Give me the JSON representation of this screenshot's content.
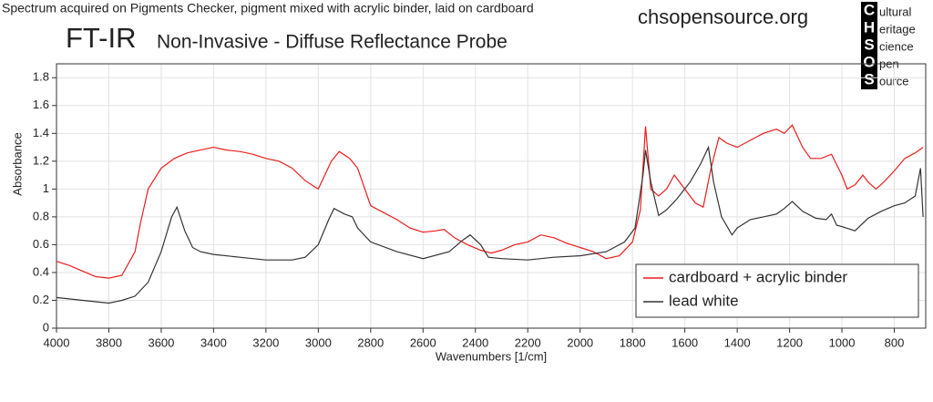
{
  "chart_data": {
    "type": "line",
    "caption": "Spectrum acquired on Pigments Checker, pigment mixed with acrylic binder, laid on cardboard",
    "title": "FT-IR",
    "subtitle": "Non-Invasive - Diffuse Reflectance Probe",
    "source": "chsopensource.org",
    "xlabel": "Wavenumbers [1/cm]",
    "ylabel": "Absorbance",
    "xlim": [
      4000,
      680
    ],
    "ylim": [
      0,
      1.9
    ],
    "xticks": [
      4000,
      3800,
      3600,
      3400,
      3200,
      3000,
      2800,
      2600,
      2400,
      2200,
      2000,
      1800,
      1600,
      1400,
      1200,
      1000,
      800
    ],
    "yticks": [
      0,
      0.2,
      0.4,
      0.6,
      0.8,
      1,
      1.2,
      1.4,
      1.6,
      1.8
    ],
    "grid": true,
    "legend": "lower right",
    "series": [
      {
        "name": "cardboard + acrylic binder",
        "color": "#ee1c1c",
        "x": [
          4000,
          3950,
          3900,
          3850,
          3800,
          3750,
          3700,
          3680,
          3650,
          3600,
          3550,
          3500,
          3450,
          3400,
          3350,
          3300,
          3250,
          3200,
          3150,
          3100,
          3050,
          3000,
          2950,
          2920,
          2880,
          2850,
          2800,
          2750,
          2700,
          2650,
          2600,
          2550,
          2520,
          2480,
          2430,
          2380,
          2340,
          2300,
          2250,
          2200,
          2150,
          2100,
          2050,
          2000,
          1950,
          1900,
          1850,
          1800,
          1770,
          1750,
          1730,
          1700,
          1670,
          1640,
          1600,
          1560,
          1530,
          1500,
          1470,
          1440,
          1400,
          1350,
          1300,
          1250,
          1220,
          1190,
          1150,
          1120,
          1080,
          1040,
          1000,
          980,
          950,
          920,
          900,
          870,
          840,
          800,
          760,
          720,
          690
        ],
        "values": [
          0.48,
          0.45,
          0.41,
          0.37,
          0.36,
          0.38,
          0.55,
          0.75,
          1.0,
          1.15,
          1.22,
          1.26,
          1.28,
          1.3,
          1.28,
          1.27,
          1.25,
          1.22,
          1.2,
          1.15,
          1.06,
          1.0,
          1.2,
          1.27,
          1.22,
          1.15,
          0.88,
          0.83,
          0.78,
          0.72,
          0.69,
          0.7,
          0.71,
          0.65,
          0.6,
          0.56,
          0.54,
          0.56,
          0.6,
          0.62,
          0.67,
          0.65,
          0.61,
          0.58,
          0.55,
          0.5,
          0.52,
          0.62,
          0.85,
          1.45,
          1.0,
          0.95,
          1.0,
          1.1,
          1.0,
          0.9,
          0.87,
          1.15,
          1.37,
          1.33,
          1.3,
          1.35,
          1.4,
          1.43,
          1.4,
          1.46,
          1.3,
          1.22,
          1.22,
          1.25,
          1.1,
          1.0,
          1.03,
          1.1,
          1.05,
          1.0,
          1.05,
          1.13,
          1.22,
          1.26,
          1.3
        ]
      },
      {
        "name": "lead white",
        "color": "#333333",
        "x": [
          4000,
          3900,
          3800,
          3750,
          3700,
          3650,
          3600,
          3560,
          3540,
          3510,
          3480,
          3450,
          3400,
          3300,
          3200,
          3100,
          3050,
          3000,
          2960,
          2940,
          2900,
          2870,
          2850,
          2800,
          2700,
          2600,
          2500,
          2450,
          2420,
          2380,
          2350,
          2300,
          2200,
          2100,
          2000,
          1900,
          1830,
          1790,
          1760,
          1750,
          1730,
          1700,
          1670,
          1630,
          1580,
          1540,
          1510,
          1490,
          1460,
          1420,
          1400,
          1350,
          1300,
          1250,
          1220,
          1190,
          1150,
          1100,
          1060,
          1040,
          1020,
          1000,
          950,
          900,
          850,
          800,
          760,
          720,
          700,
          690
        ],
        "values": [
          0.22,
          0.2,
          0.18,
          0.2,
          0.23,
          0.33,
          0.55,
          0.8,
          0.87,
          0.7,
          0.58,
          0.55,
          0.53,
          0.51,
          0.49,
          0.49,
          0.51,
          0.6,
          0.78,
          0.86,
          0.82,
          0.8,
          0.72,
          0.62,
          0.55,
          0.5,
          0.55,
          0.63,
          0.67,
          0.6,
          0.51,
          0.5,
          0.49,
          0.51,
          0.52,
          0.55,
          0.62,
          0.72,
          1.1,
          1.28,
          1.05,
          0.81,
          0.85,
          0.93,
          1.05,
          1.18,
          1.3,
          1.05,
          0.8,
          0.67,
          0.72,
          0.78,
          0.8,
          0.82,
          0.86,
          0.91,
          0.84,
          0.79,
          0.78,
          0.82,
          0.74,
          0.73,
          0.7,
          0.79,
          0.84,
          0.88,
          0.9,
          0.95,
          1.15,
          0.8
        ]
      }
    ]
  },
  "logo": {
    "letters": [
      "C",
      "H",
      "S",
      "O",
      "S"
    ],
    "words": [
      "ultural",
      "eritage",
      "cience",
      "pen",
      "ource"
    ]
  }
}
